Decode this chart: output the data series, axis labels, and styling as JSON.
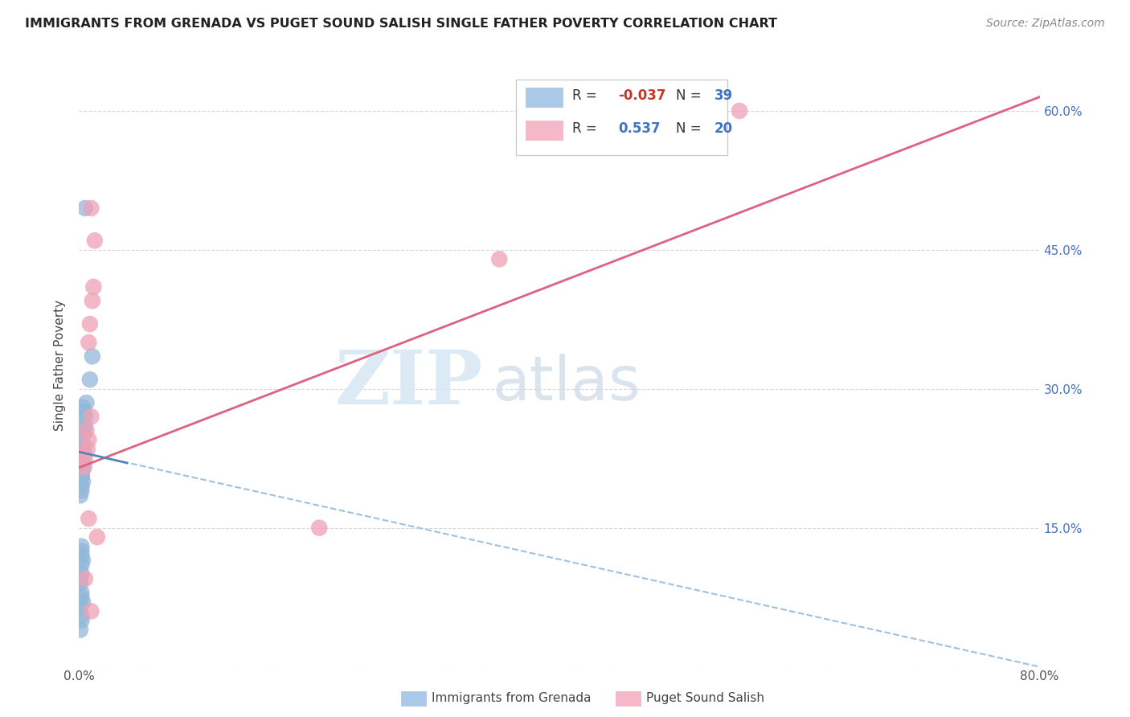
{
  "title": "IMMIGRANTS FROM GRENADA VS PUGET SOUND SALISH SINGLE FATHER POVERTY CORRELATION CHART",
  "source": "Source: ZipAtlas.com",
  "ylabel": "Single Father Poverty",
  "x_min": 0.0,
  "x_max": 0.8,
  "y_min": 0.0,
  "y_max": 0.65,
  "x_ticks": [
    0.0,
    0.1,
    0.2,
    0.3,
    0.4,
    0.5,
    0.6,
    0.7,
    0.8
  ],
  "x_tick_labels": [
    "0.0%",
    "",
    "",
    "",
    "",
    "",
    "",
    "",
    "80.0%"
  ],
  "y_ticks": [
    0.0,
    0.15,
    0.3,
    0.45,
    0.6
  ],
  "y_tick_labels_right": [
    "",
    "15.0%",
    "30.0%",
    "45.0%",
    "60.0%"
  ],
  "watermark_zip": "ZIP",
  "watermark_atlas": "atlas",
  "blue_r": "-0.037",
  "blue_n": "39",
  "pink_r": "0.537",
  "pink_n": "20",
  "blue_scatter_x": [
    0.005,
    0.011,
    0.009,
    0.006,
    0.003,
    0.004,
    0.005,
    0.005,
    0.004,
    0.003,
    0.003,
    0.004,
    0.003,
    0.003,
    0.004,
    0.003,
    0.002,
    0.002,
    0.002,
    0.002,
    0.003,
    0.002,
    0.002,
    0.001,
    0.002,
    0.002,
    0.002,
    0.003,
    0.002,
    0.002,
    0.001,
    0.001,
    0.002,
    0.002,
    0.003,
    0.001,
    0.002,
    0.002,
    0.001
  ],
  "blue_scatter_y": [
    0.495,
    0.335,
    0.31,
    0.285,
    0.28,
    0.275,
    0.27,
    0.26,
    0.255,
    0.25,
    0.24,
    0.235,
    0.228,
    0.222,
    0.218,
    0.213,
    0.21,
    0.207,
    0.205,
    0.205,
    0.2,
    0.195,
    0.19,
    0.185,
    0.13,
    0.125,
    0.12,
    0.115,
    0.11,
    0.1,
    0.095,
    0.09,
    0.08,
    0.075,
    0.07,
    0.065,
    0.055,
    0.05,
    0.04
  ],
  "pink_scatter_x": [
    0.01,
    0.013,
    0.012,
    0.011,
    0.009,
    0.008,
    0.01,
    0.006,
    0.008,
    0.007,
    0.005,
    0.004,
    0.003,
    0.35,
    0.55,
    0.2,
    0.015,
    0.01,
    0.005,
    0.008
  ],
  "pink_scatter_y": [
    0.495,
    0.46,
    0.41,
    0.395,
    0.37,
    0.35,
    0.27,
    0.255,
    0.245,
    0.235,
    0.225,
    0.215,
    0.23,
    0.44,
    0.6,
    0.15,
    0.14,
    0.06,
    0.095,
    0.16
  ],
  "blue_line_x": [
    0.0,
    0.04
  ],
  "blue_line_y": [
    0.232,
    0.22
  ],
  "blue_dashed_line_x": [
    0.0,
    0.8
  ],
  "blue_dashed_line_y": [
    0.232,
    0.0
  ],
  "pink_line_x": [
    0.0,
    0.8
  ],
  "pink_line_y": [
    0.215,
    0.615
  ],
  "blue_color": "#93b8d8",
  "pink_color": "#f0a0b5",
  "blue_line_color": "#5585b5",
  "blue_dashed_color": "#a0c0e0",
  "pink_line_color": "#e06080",
  "grid_color": "#d8d8d8",
  "background_color": "#ffffff",
  "legend_blue_patch": "#aac8e8",
  "legend_pink_patch": "#f5b8c8",
  "legend_text_dark": "#333333",
  "legend_text_blue": "#4472c4",
  "legend_text_red": "#c0392b"
}
